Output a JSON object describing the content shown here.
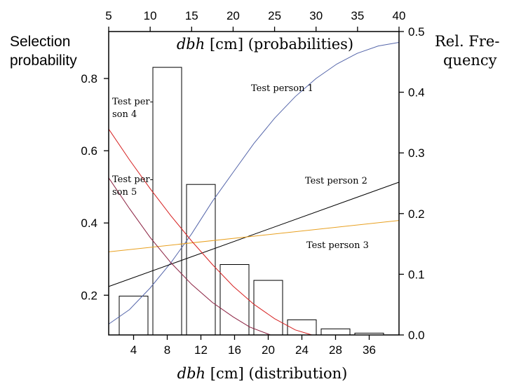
{
  "chart_data": {
    "type": "bar",
    "title": "",
    "xlabel_bottom": {
      "var": "dbh",
      "rest": " [cm] (distribution)"
    },
    "xlabel_top": {
      "var": "dbh",
      "rest": " [cm] (probabilities)"
    },
    "ylabel_left": [
      "Selection",
      "probability"
    ],
    "ylabel_right": [
      "Rel. Fre-",
      "quency"
    ],
    "bottom_ticks": [
      "4",
      "8",
      "12",
      "16",
      "20",
      "24",
      "28",
      "36"
    ],
    "top_axis": {
      "range": [
        5,
        40
      ],
      "ticks": [
        5,
        10,
        15,
        20,
        25,
        30,
        35,
        40
      ]
    },
    "left_axis": {
      "range": [
        0.09,
        0.93
      ],
      "ticks": [
        0.2,
        0.4,
        0.6,
        0.8
      ]
    },
    "right_axis": {
      "range": [
        0.0,
        0.5
      ],
      "ticks": [
        0.0,
        0.1,
        0.2,
        0.3,
        0.4,
        0.5
      ]
    },
    "bars": {
      "categories": [
        "4",
        "8",
        "12",
        "16",
        "20",
        "24",
        "28",
        "36"
      ],
      "values": [
        0.064,
        0.441,
        0.248,
        0.116,
        0.09,
        0.025,
        0.01,
        0.003
      ]
    },
    "series": [
      {
        "label": "Test person 1",
        "color": "#5566aa",
        "x": [
          5,
          7.5,
          10,
          12.5,
          15,
          17.5,
          20,
          22.5,
          25,
          27.5,
          30,
          32.5,
          35,
          37.5,
          40
        ],
        "y": [
          0.12,
          0.16,
          0.22,
          0.29,
          0.37,
          0.46,
          0.54,
          0.62,
          0.69,
          0.75,
          0.8,
          0.84,
          0.87,
          0.89,
          0.9
        ]
      },
      {
        "label": "Test person 2",
        "color": "#000000",
        "x": [
          5,
          40
        ],
        "y": [
          0.224,
          0.513
        ]
      },
      {
        "label": "Test person 3",
        "color": "#e8a020",
        "x": [
          5,
          40
        ],
        "y": [
          0.32,
          0.407
        ]
      },
      {
        "label": "Test person 4",
        "color": "#d62020",
        "x": [
          5,
          7.5,
          10,
          12.5,
          15,
          17.5,
          20,
          22.5,
          25,
          27.5,
          29.5
        ],
        "y": [
          0.66,
          0.575,
          0.495,
          0.42,
          0.35,
          0.285,
          0.225,
          0.175,
          0.135,
          0.104,
          0.09
        ]
      },
      {
        "label": "Test person 5",
        "color": "#8a2040",
        "x": [
          5,
          7.5,
          10,
          12.5,
          15,
          17.5,
          20,
          22,
          24.5
        ],
        "y": [
          0.525,
          0.44,
          0.36,
          0.29,
          0.23,
          0.18,
          0.14,
          0.112,
          0.09
        ]
      }
    ],
    "annotations": [
      {
        "lines": [
          "Test person 1"
        ]
      },
      {
        "lines": [
          "Test person 2"
        ]
      },
      {
        "lines": [
          "Test person 3"
        ]
      },
      {
        "lines": [
          "Test per-",
          "son 4"
        ]
      },
      {
        "lines": [
          "Test per-",
          "son 5"
        ]
      }
    ],
    "grid": false,
    "legend": "none"
  }
}
